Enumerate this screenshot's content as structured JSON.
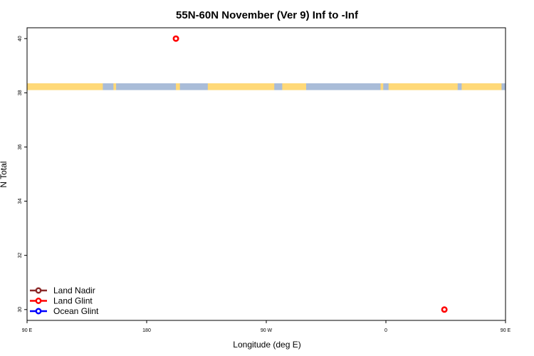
{
  "chart_data": {
    "type": "scatter",
    "title": "55N-60N November (Ver 9)   Inf to -Inf",
    "xlabel": "Longitude (deg E)",
    "ylabel": "N Total",
    "xlim": [
      90,
      450
    ],
    "ylim": [
      29.6,
      40.4
    ],
    "x_ticks": [
      {
        "value": 90,
        "label": "90 E"
      },
      {
        "value": 180,
        "label": "180"
      },
      {
        "value": 270,
        "label": "90 W"
      },
      {
        "value": 360,
        "label": "0"
      },
      {
        "value": 450,
        "label": "90 E"
      },
      {
        "value": 540,
        "label": "180"
      }
    ],
    "y_ticks": [
      {
        "value": 30,
        "label": "30"
      },
      {
        "value": 32,
        "label": "32"
      },
      {
        "value": 34,
        "label": "34"
      },
      {
        "value": 36,
        "label": "36"
      },
      {
        "value": 38,
        "label": "38"
      },
      {
        "value": 40,
        "label": "40"
      }
    ],
    "grid": false,
    "legend_placement": "bottom-left",
    "series": [
      {
        "name": "Land Nadir",
        "color": "#8b2a2a",
        "points": []
      },
      {
        "name": "Land Glint",
        "color": "#ff0000",
        "points": [
          [
            202,
            40.0
          ],
          [
            404,
            30.0
          ]
        ]
      },
      {
        "name": "Ocean Glint",
        "color": "#0000ff",
        "points": []
      }
    ],
    "land_strip": {
      "y_range": [
        38.1,
        38.35
      ],
      "ocean_color": "#a9bcd8",
      "land_color": "#ffd978",
      "land_lon_ranges": [
        [
          90,
          147
        ],
        [
          155,
          157
        ],
        [
          202,
          205
        ],
        [
          226,
          276
        ],
        [
          282,
          300
        ],
        [
          356,
          358
        ],
        [
          362,
          414
        ],
        [
          417,
          447
        ]
      ]
    }
  }
}
